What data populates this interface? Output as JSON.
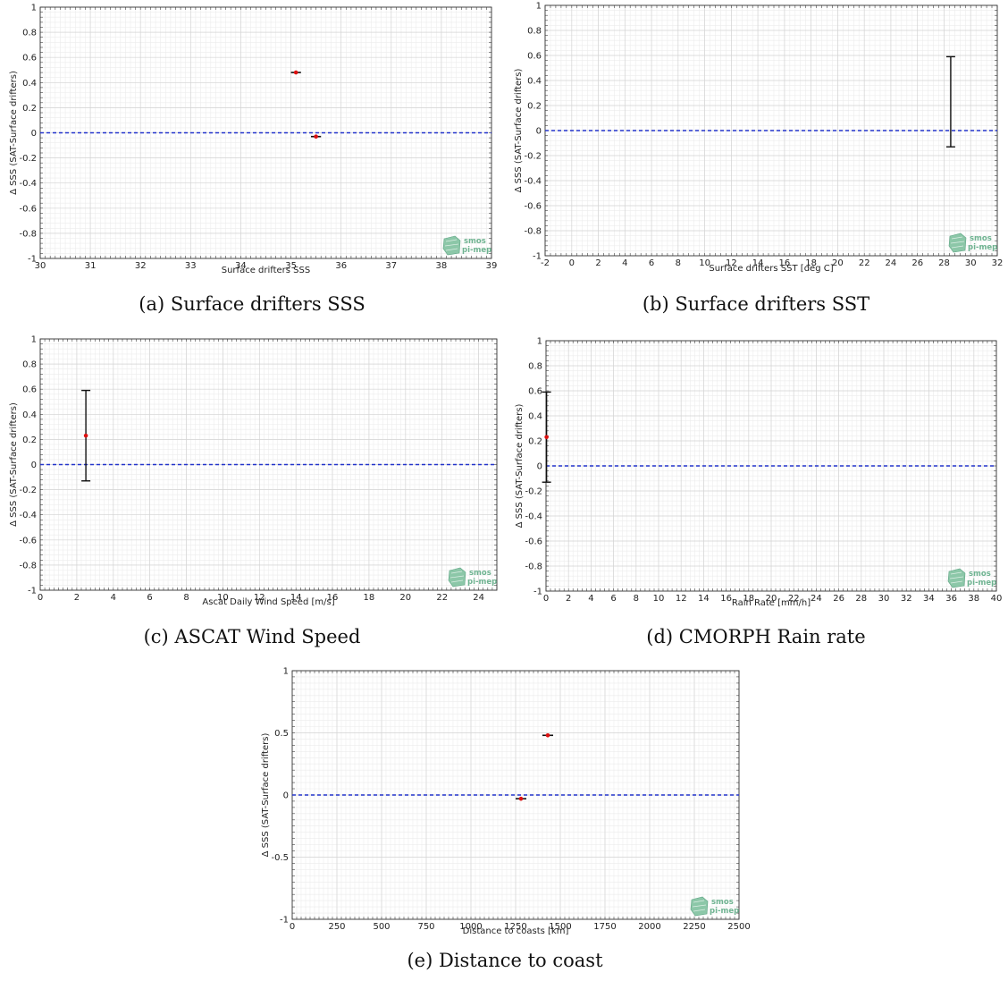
{
  "logo": {
    "line1": "smos",
    "line2": "pi-mep",
    "color": "#6fb391"
  },
  "colors": {
    "zero_line": "#2233cc",
    "point": "#dd1111",
    "errorbar": "#111111",
    "grid_minor": "#ececec",
    "grid_major": "#d4d4d4"
  },
  "chart_data": [
    {
      "type": "scatter",
      "caption": "(a) Surface drifters SSS",
      "xlabel": "Surface drifters SSS",
      "ylabel": "Δ SSS (SAT-Surface drifters)",
      "xlim": [
        30,
        39
      ],
      "ylim": [
        -1,
        1
      ],
      "xticks": [
        30,
        31,
        32,
        33,
        34,
        35,
        36,
        37,
        38,
        39
      ],
      "yticks": [
        -1,
        -0.8,
        -0.6,
        -0.4,
        -0.2,
        0,
        0.2,
        0.4,
        0.6,
        0.8,
        1
      ],
      "xminor": 0.1,
      "yminor": 0.04,
      "points": [
        {
          "x": 35.1,
          "y": 0.48,
          "xerr": 0.1,
          "yerr": null
        },
        {
          "x": 35.5,
          "y": -0.03,
          "xerr": 0.1,
          "yerr": null
        }
      ]
    },
    {
      "type": "scatter",
      "caption": "(b) Surface drifters SST",
      "xlabel": "Surface drifters SST [deg C]",
      "ylabel": "Δ SSS (SAT-Surface drifters)",
      "xlim": [
        -2,
        32
      ],
      "ylim": [
        -1,
        1
      ],
      "xticks": [
        -2,
        0,
        2,
        4,
        6,
        8,
        10,
        12,
        14,
        16,
        18,
        20,
        22,
        24,
        26,
        28,
        30,
        32
      ],
      "yticks": [
        -1,
        -0.8,
        -0.6,
        -0.4,
        -0.2,
        0,
        0.2,
        0.4,
        0.6,
        0.8,
        1
      ],
      "xminor": 0.4,
      "yminor": 0.04,
      "points": [
        {
          "x": 28.5,
          "y": 0.23,
          "xerr": null,
          "yerr": [
            0.36,
            0.36
          ],
          "hide_marker": true
        }
      ]
    },
    {
      "type": "scatter",
      "caption": "(c) ASCAT Wind Speed",
      "xlabel": "Ascat Daily Wind Speed [m/s]",
      "ylabel": "Δ SSS (SAT-Surface drifters)",
      "xlim": [
        0,
        25
      ],
      "ylim": [
        -1,
        1
      ],
      "xticks": [
        0,
        2,
        4,
        6,
        8,
        10,
        12,
        14,
        16,
        18,
        20,
        22,
        24
      ],
      "yticks": [
        -1,
        -0.8,
        -0.6,
        -0.4,
        -0.2,
        0,
        0.2,
        0.4,
        0.6,
        0.8,
        1
      ],
      "xminor": 0.25,
      "yminor": 0.04,
      "points": [
        {
          "x": 2.5,
          "y": 0.23,
          "xerr": null,
          "yerr": [
            0.36,
            0.36
          ]
        }
      ]
    },
    {
      "type": "scatter",
      "caption": "(d) CMORPH Rain rate",
      "xlabel": "Rain Rate [mm/h]",
      "ylabel": "Δ SSS (SAT-Surface drifters)",
      "xlim": [
        0,
        40
      ],
      "ylim": [
        -1,
        1
      ],
      "xticks": [
        0,
        2,
        4,
        6,
        8,
        10,
        12,
        14,
        16,
        18,
        20,
        22,
        24,
        26,
        28,
        30,
        32,
        34,
        36,
        38,
        40
      ],
      "yticks": [
        -1,
        -0.8,
        -0.6,
        -0.4,
        -0.2,
        0,
        0.2,
        0.4,
        0.6,
        0.8,
        1
      ],
      "xminor": 0.4,
      "yminor": 0.04,
      "points": [
        {
          "x": 0.05,
          "y": 0.23,
          "xerr": null,
          "yerr": [
            0.36,
            0.36
          ]
        }
      ]
    },
    {
      "type": "scatter",
      "caption": "(e) Distance to coast",
      "xlabel": "Distance to coasts [km]",
      "ylabel": "Δ SSS (SAT-Surface drifters)",
      "xlim": [
        0,
        2500
      ],
      "ylim": [
        -1,
        1
      ],
      "xticks": [
        0,
        250,
        500,
        750,
        1000,
        1250,
        1500,
        1750,
        2000,
        2250,
        2500
      ],
      "yticks": [
        -1,
        -0.5,
        0,
        0.5,
        1
      ],
      "xminor": 25,
      "yminor": 0.05,
      "points": [
        {
          "x": 1430,
          "y": 0.48,
          "xerr": 30,
          "yerr": null
        },
        {
          "x": 1280,
          "y": -0.03,
          "xerr": 30,
          "yerr": null
        }
      ]
    }
  ]
}
